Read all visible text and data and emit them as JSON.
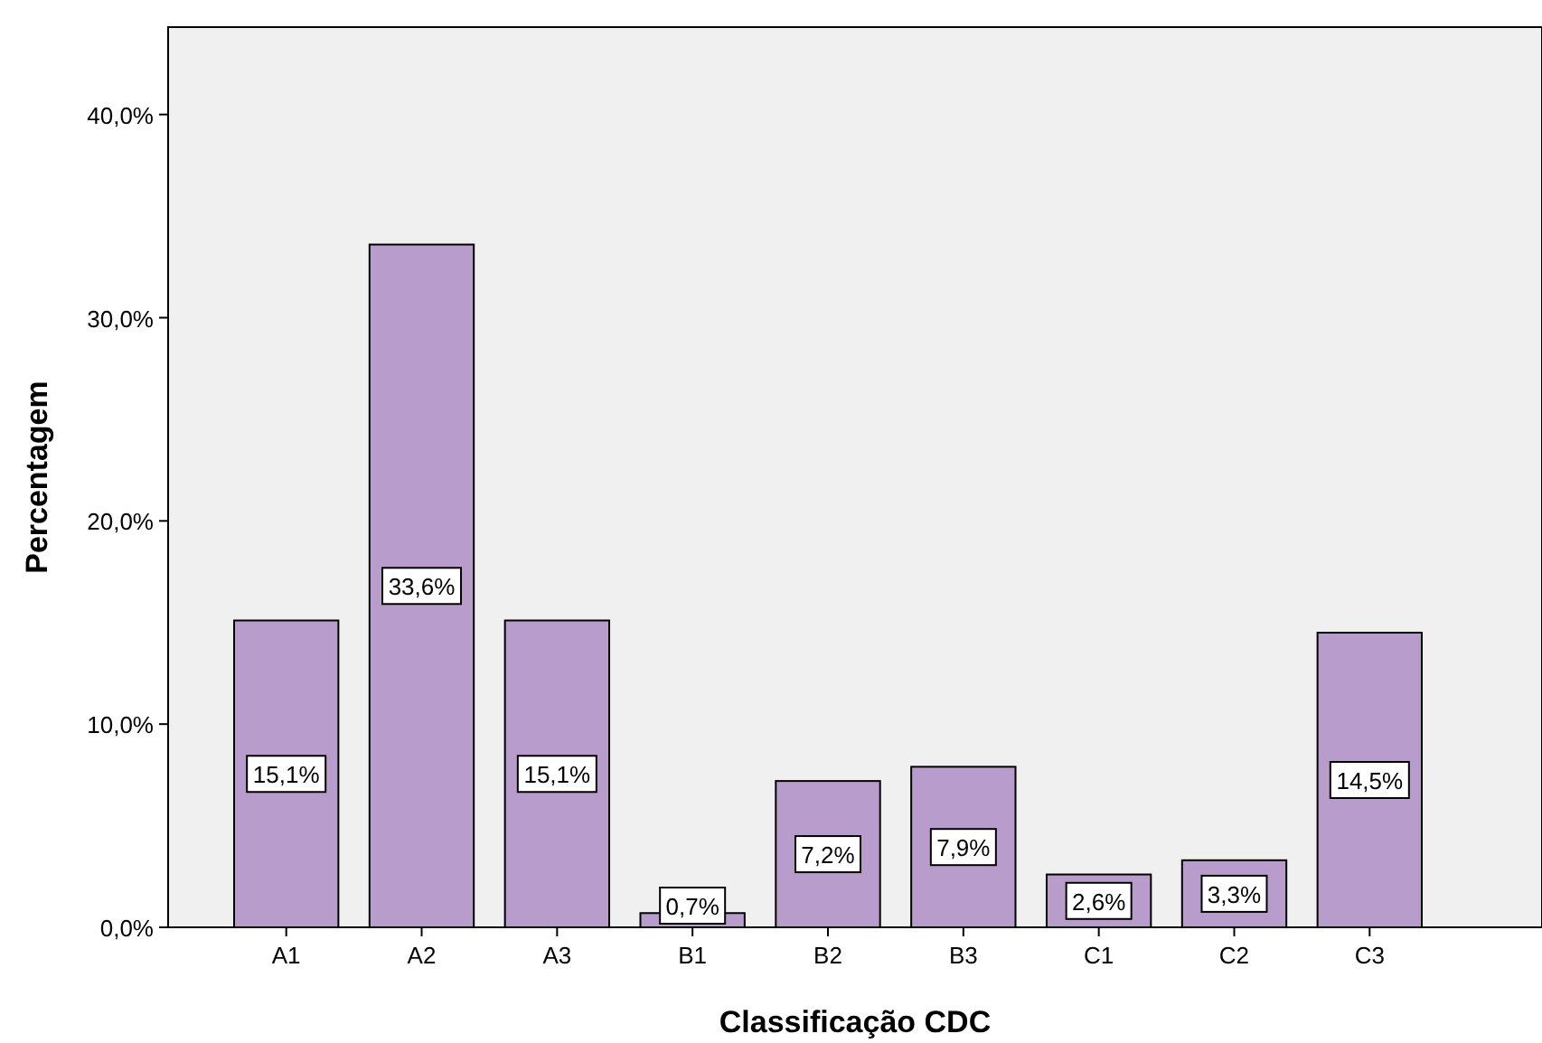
{
  "chart_data": {
    "type": "bar",
    "xlabel": "Classificação CDC",
    "ylabel": "Percentagem",
    "categories": [
      "A1",
      "A2",
      "A3",
      "B1",
      "B2",
      "B3",
      "C1",
      "C2",
      "C3"
    ],
    "values": [
      15.1,
      33.6,
      15.1,
      0.7,
      7.2,
      7.9,
      2.6,
      3.3,
      14.5
    ],
    "value_labels": [
      "15,1%",
      "33,6%",
      "15,1%",
      "0,7%",
      "7,2%",
      "7,9%",
      "2,6%",
      "3,3%",
      "14,5%"
    ],
    "color": "#b89ccb",
    "ylim": [
      0,
      44.3
    ],
    "yticks": [
      {
        "value": 0,
        "label": "0,0%"
      },
      {
        "value": 10,
        "label": "10,0%"
      },
      {
        "value": 20,
        "label": "20,0%"
      },
      {
        "value": 30,
        "label": "30,0%"
      },
      {
        "value": 40,
        "label": "40,0%"
      }
    ],
    "grid": false
  }
}
